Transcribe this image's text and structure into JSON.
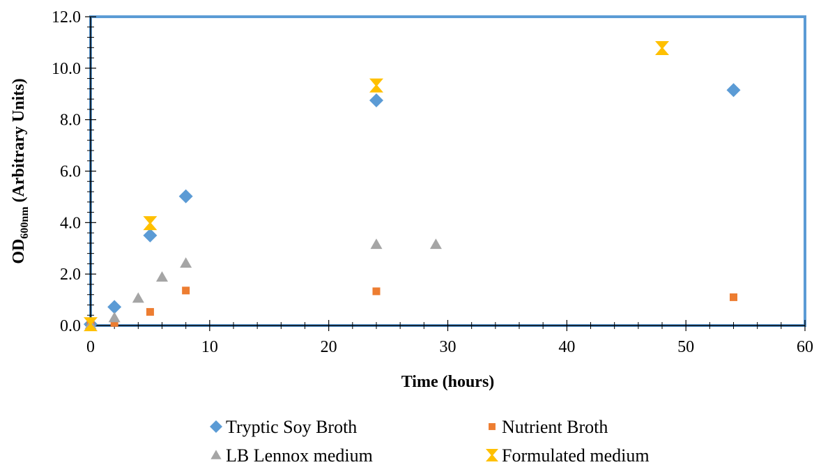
{
  "chart_data": {
    "type": "scatter",
    "xlabel": "Time (hours)",
    "ylabel": {
      "main": "OD",
      "subscript": "600nm",
      "rest": " (Arbitrary Units)"
    },
    "xlim": [
      0,
      60
    ],
    "ylim": [
      0,
      12
    ],
    "x_ticks": [
      0,
      10,
      20,
      30,
      40,
      50,
      60
    ],
    "x_tick_labels": [
      "0",
      "10",
      "20",
      "30",
      "40",
      "50",
      "60"
    ],
    "y_ticks": [
      0,
      2,
      4,
      6,
      8,
      10,
      12
    ],
    "y_tick_labels": [
      "0.0",
      "2.0",
      "4.0",
      "6.0",
      "8.0",
      "10.0",
      "12.0"
    ],
    "grid": false,
    "legend_position": "bottom",
    "plot_border_color": "#5B9BD5",
    "series": [
      {
        "name": "Tryptic Soy Broth",
        "marker": "diamond",
        "color": "#5B9BD5",
        "points": [
          [
            0,
            0.05
          ],
          [
            2,
            0.72
          ],
          [
            5,
            3.5
          ],
          [
            8,
            5.02
          ],
          [
            24,
            8.75
          ],
          [
            54,
            9.15
          ]
        ]
      },
      {
        "name": "Nutrient Broth",
        "marker": "square",
        "color": "#ED7D31",
        "points": [
          [
            0,
            0.02
          ],
          [
            2,
            0.1
          ],
          [
            5,
            0.53
          ],
          [
            8,
            1.36
          ],
          [
            24,
            1.33
          ],
          [
            54,
            1.1
          ]
        ]
      },
      {
        "name": "LB Lennox medium",
        "marker": "triangle",
        "color": "#A5A5A5",
        "points": [
          [
            0,
            0.03
          ],
          [
            2,
            0.3
          ],
          [
            4,
            1.06
          ],
          [
            6,
            1.88
          ],
          [
            8,
            2.42
          ],
          [
            24,
            3.15
          ],
          [
            29,
            3.15
          ]
        ]
      },
      {
        "name": "Formulated medium",
        "marker": "hourglass",
        "color": "#FFC000",
        "points": [
          [
            0,
            0.05
          ],
          [
            5,
            3.98
          ],
          [
            24,
            9.33
          ],
          [
            48,
            10.78
          ]
        ]
      }
    ]
  }
}
